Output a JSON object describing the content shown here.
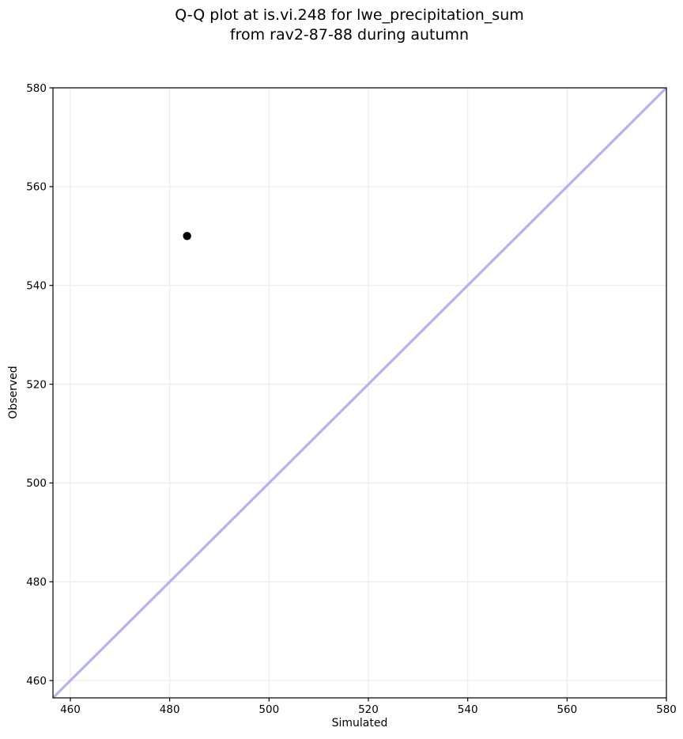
{
  "chart_data": {
    "type": "scatter",
    "title": "Q-Q plot at is.vi.248 for lwe_precipitation_sum\nfrom rav2-87-88 during autumn",
    "title_line1": "Q-Q plot at is.vi.248 for lwe_precipitation_sum",
    "title_line2": "from rav2-87-88 during autumn",
    "xlabel": "Simulated",
    "ylabel": "Observed",
    "xlim": [
      456.5,
      580
    ],
    "ylim": [
      456.5,
      580
    ],
    "xticks": [
      460,
      480,
      500,
      520,
      540,
      560,
      580
    ],
    "yticks": [
      460,
      480,
      500,
      520,
      540,
      560,
      580
    ],
    "grid": true,
    "legend": null,
    "points": [
      {
        "x": 483.5,
        "y": 550.0
      }
    ],
    "identity_line": {
      "x1": 456.5,
      "y1": 456.5,
      "x2": 580,
      "y2": 580
    },
    "colors": {
      "point": "#000000",
      "identity_line": "#b3b3f2",
      "grid": "#ededed",
      "spine": "#000000",
      "background": "#ffffff"
    }
  }
}
